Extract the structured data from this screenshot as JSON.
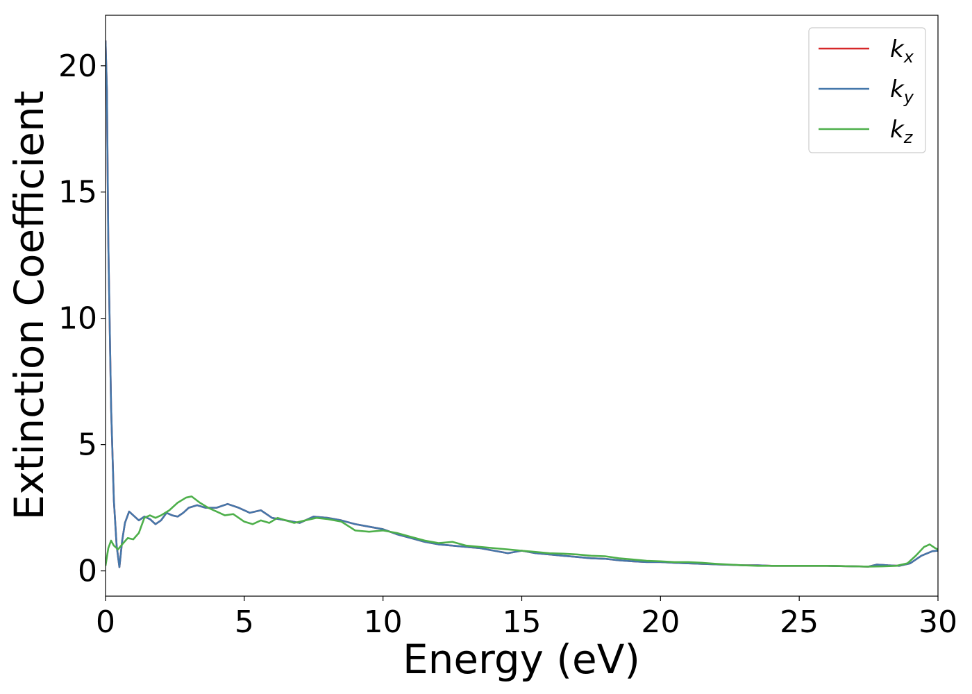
{
  "chart_data": {
    "type": "line",
    "xlabel": "Energy (eV)",
    "ylabel": "Extinction Coefficient",
    "xlim": [
      0,
      30
    ],
    "ylim": [
      -1,
      22
    ],
    "xticks": [
      0,
      5,
      10,
      15,
      20,
      25,
      30
    ],
    "yticks": [
      0,
      5,
      10,
      15,
      20
    ],
    "grid": false,
    "legend_position": "top-right",
    "series": [
      {
        "name": "k_x",
        "base": "k",
        "sub": "x",
        "color": "#d62728",
        "x": [
          0.0,
          0.05,
          0.1,
          0.2,
          0.3,
          0.4,
          0.5,
          0.6,
          0.7,
          0.85,
          1.0,
          1.2,
          1.4,
          1.6,
          1.8,
          2.0,
          2.2,
          2.4,
          2.6,
          2.8,
          3.0,
          3.3,
          3.6,
          4.0,
          4.4,
          4.8,
          5.2,
          5.6,
          6.0,
          6.5,
          7.0,
          7.5,
          8.0,
          8.5,
          9.0,
          9.5,
          10.0,
          10.5,
          11.0,
          11.5,
          12.0,
          12.5,
          13.0,
          13.5,
          14.0,
          14.5,
          15.0,
          15.5,
          16.0,
          16.5,
          17.0,
          17.5,
          18.0,
          18.5,
          19.0,
          19.5,
          20.0,
          20.5,
          21.0,
          21.5,
          22.0,
          22.5,
          23.0,
          23.5,
          24.0,
          24.5,
          25.0,
          25.5,
          26.0,
          26.5,
          27.0,
          27.5,
          27.8,
          28.2,
          28.6,
          29.0,
          29.4,
          29.8,
          30.0
        ],
        "y": [
          21.0,
          19.0,
          13.0,
          6.5,
          2.8,
          1.0,
          0.15,
          1.2,
          1.9,
          2.35,
          2.2,
          2.0,
          2.15,
          2.05,
          1.85,
          2.0,
          2.3,
          2.2,
          2.15,
          2.3,
          2.5,
          2.6,
          2.5,
          2.5,
          2.65,
          2.5,
          2.3,
          2.4,
          2.1,
          2.0,
          1.9,
          2.15,
          2.1,
          2.0,
          1.85,
          1.75,
          1.65,
          1.45,
          1.3,
          1.15,
          1.05,
          1.0,
          0.95,
          0.9,
          0.8,
          0.7,
          0.8,
          0.7,
          0.65,
          0.6,
          0.55,
          0.5,
          0.48,
          0.42,
          0.38,
          0.35,
          0.35,
          0.32,
          0.3,
          0.28,
          0.26,
          0.24,
          0.22,
          0.22,
          0.2,
          0.2,
          0.2,
          0.2,
          0.2,
          0.19,
          0.18,
          0.17,
          0.25,
          0.22,
          0.2,
          0.3,
          0.6,
          0.78,
          0.8
        ]
      },
      {
        "name": "k_y",
        "base": "k",
        "sub": "y",
        "color": "#4477aa",
        "x": [
          0.0,
          0.05,
          0.1,
          0.2,
          0.3,
          0.4,
          0.5,
          0.6,
          0.7,
          0.85,
          1.0,
          1.2,
          1.4,
          1.6,
          1.8,
          2.0,
          2.2,
          2.4,
          2.6,
          2.8,
          3.0,
          3.3,
          3.6,
          4.0,
          4.4,
          4.8,
          5.2,
          5.6,
          6.0,
          6.5,
          7.0,
          7.5,
          8.0,
          8.5,
          9.0,
          9.5,
          10.0,
          10.5,
          11.0,
          11.5,
          12.0,
          12.5,
          13.0,
          13.5,
          14.0,
          14.5,
          15.0,
          15.5,
          16.0,
          16.5,
          17.0,
          17.5,
          18.0,
          18.5,
          19.0,
          19.5,
          20.0,
          20.5,
          21.0,
          21.5,
          22.0,
          22.5,
          23.0,
          23.5,
          24.0,
          24.5,
          25.0,
          25.5,
          26.0,
          26.5,
          27.0,
          27.5,
          27.8,
          28.2,
          28.6,
          29.0,
          29.4,
          29.8,
          30.0
        ],
        "y": [
          21.0,
          19.0,
          13.0,
          6.5,
          2.8,
          1.0,
          0.15,
          1.2,
          1.9,
          2.35,
          2.2,
          2.0,
          2.15,
          2.05,
          1.85,
          2.0,
          2.3,
          2.2,
          2.15,
          2.3,
          2.5,
          2.6,
          2.5,
          2.5,
          2.65,
          2.5,
          2.3,
          2.4,
          2.1,
          2.0,
          1.9,
          2.15,
          2.1,
          2.0,
          1.85,
          1.75,
          1.65,
          1.45,
          1.3,
          1.15,
          1.05,
          1.0,
          0.95,
          0.9,
          0.8,
          0.7,
          0.8,
          0.7,
          0.65,
          0.6,
          0.55,
          0.5,
          0.48,
          0.42,
          0.38,
          0.35,
          0.35,
          0.32,
          0.3,
          0.28,
          0.26,
          0.24,
          0.22,
          0.22,
          0.2,
          0.2,
          0.2,
          0.2,
          0.2,
          0.19,
          0.18,
          0.17,
          0.25,
          0.22,
          0.2,
          0.3,
          0.6,
          0.78,
          0.8
        ]
      },
      {
        "name": "k_z",
        "base": "k",
        "sub": "z",
        "color": "#4daf4a",
        "x": [
          0.0,
          0.1,
          0.2,
          0.3,
          0.45,
          0.6,
          0.8,
          1.0,
          1.2,
          1.4,
          1.6,
          1.8,
          2.0,
          2.3,
          2.6,
          2.9,
          3.1,
          3.4,
          3.7,
          4.0,
          4.3,
          4.6,
          5.0,
          5.3,
          5.6,
          5.9,
          6.2,
          6.5,
          6.8,
          7.2,
          7.6,
          8.0,
          8.5,
          9.0,
          9.5,
          10.0,
          10.5,
          11.0,
          11.5,
          12.0,
          12.5,
          13.0,
          13.5,
          14.0,
          14.5,
          15.0,
          15.5,
          16.0,
          16.5,
          17.0,
          17.5,
          18.0,
          18.5,
          19.0,
          19.5,
          20.0,
          20.5,
          21.0,
          21.5,
          22.0,
          22.5,
          23.0,
          23.5,
          24.0,
          24.5,
          25.0,
          25.5,
          26.0,
          26.5,
          27.0,
          27.5,
          28.0,
          28.5,
          28.9,
          29.2,
          29.5,
          29.7,
          29.9,
          30.0
        ],
        "y": [
          0.2,
          0.9,
          1.2,
          1.0,
          0.85,
          1.05,
          1.3,
          1.25,
          1.5,
          2.1,
          2.2,
          2.1,
          2.2,
          2.4,
          2.7,
          2.9,
          2.95,
          2.7,
          2.5,
          2.35,
          2.2,
          2.25,
          1.95,
          1.85,
          2.0,
          1.9,
          2.1,
          2.0,
          1.9,
          2.0,
          2.1,
          2.05,
          1.95,
          1.6,
          1.55,
          1.6,
          1.5,
          1.35,
          1.2,
          1.1,
          1.15,
          1.0,
          0.95,
          0.9,
          0.85,
          0.8,
          0.75,
          0.7,
          0.68,
          0.65,
          0.6,
          0.58,
          0.5,
          0.45,
          0.4,
          0.38,
          0.35,
          0.35,
          0.32,
          0.28,
          0.25,
          0.22,
          0.2,
          0.2,
          0.2,
          0.2,
          0.2,
          0.2,
          0.19,
          0.18,
          0.17,
          0.18,
          0.2,
          0.3,
          0.6,
          0.95,
          1.05,
          0.9,
          0.85
        ]
      }
    ]
  }
}
